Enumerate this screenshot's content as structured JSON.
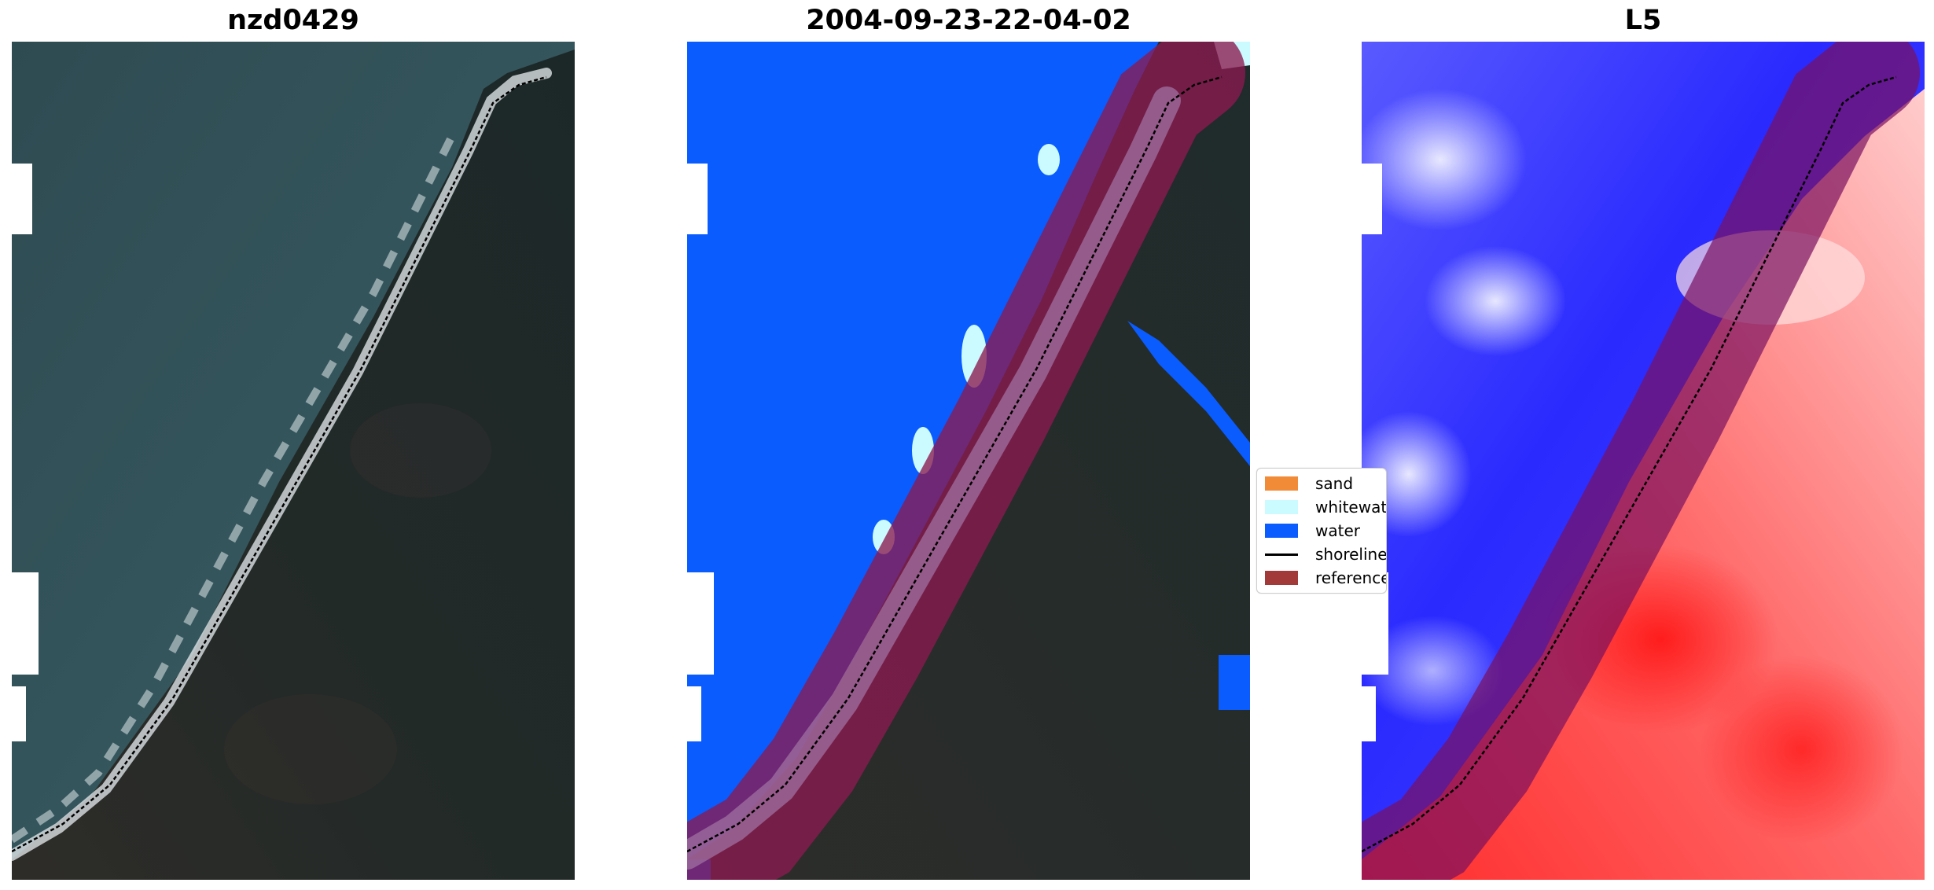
{
  "panels": [
    {
      "title": "nzd0429"
    },
    {
      "title": "2004-09-23-22-04-02"
    },
    {
      "title": "L5"
    }
  ],
  "legend": {
    "items": [
      {
        "label": "sand",
        "color": "#f28b38",
        "kind": "patch"
      },
      {
        "label": "whitewater",
        "color": "#ccfbff",
        "kind": "patch"
      },
      {
        "label": "water",
        "color": "#0a5cff",
        "kind": "patch"
      },
      {
        "label": "shoreline",
        "color": "#000000",
        "kind": "line"
      },
      {
        "label": "reference",
        "color": "#a33a3a",
        "kind": "patch"
      }
    ]
  },
  "colors": {
    "sea_rgb": "#2c4a52",
    "land_rgb": "#1e2a2a",
    "classified_water": "#0a5cff",
    "buffer": "#8c1a4a",
    "index_positive": "#ff2020",
    "index_negative": "#2020ff"
  }
}
